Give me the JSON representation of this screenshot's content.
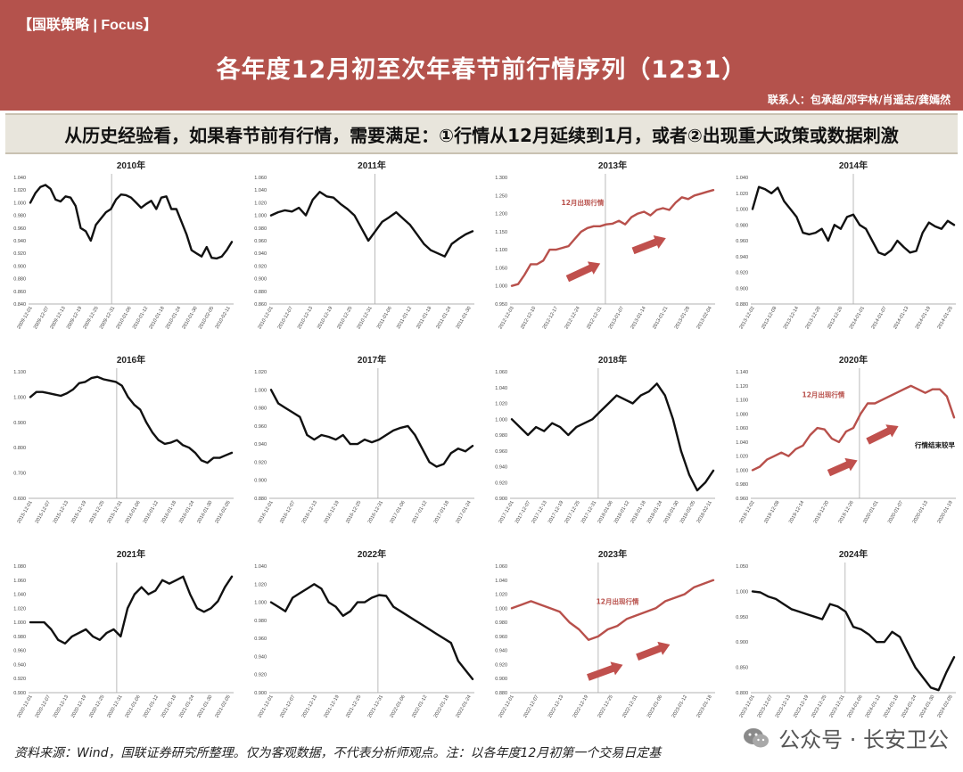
{
  "header": {
    "tag": "【国联策略 | Focus】",
    "title": "各年度12月初至次年春节前行情序列（1231）",
    "contacts": "联系人：包承超/邓宇林/肖遥志/龚嫣然"
  },
  "banner": {
    "text": "从历史经验看，如果春节前有行情，需要满足：①行情从12月延续到1月，或者②出现重大政策或数据刺激"
  },
  "footer": {
    "source": "资料来源：Wind，国联证券研究所整理。仅为客观数据，不代表分析师观点。注：以各年度12月初第一个交易日定基"
  },
  "watermark": {
    "text": "公众号 · 长安卫公",
    "icon": "wechat-icon"
  },
  "colors": {
    "black_line": "#111111",
    "red_line": "#b8504b",
    "arrow": "#c0504d",
    "header_bg": "#b4524c"
  },
  "chart_data": [
    {
      "type": "line",
      "title": "2010年",
      "color": "black",
      "ylim": [
        0.84,
        1.04
      ],
      "yticks": [
        "0.840",
        "0.860",
        "0.880",
        "0.900",
        "0.920",
        "0.940",
        "0.960",
        "0.980",
        "1.000",
        "1.020",
        "1.040"
      ],
      "xticks": [
        "2009-12-01",
        "2009-12-07",
        "2009-12-13",
        "2009-12-19",
        "2009-12-25",
        "2009-12-31",
        "2010-01-06",
        "2010-01-12",
        "2010-01-18",
        "2010-01-24",
        "2010-01-30",
        "2010-02-05",
        "2010-02-11"
      ],
      "divider": 0.405,
      "annotations": [],
      "arrows": [],
      "values": [
        1.0,
        1.015,
        1.025,
        1.028,
        1.022,
        1.005,
        1.002,
        1.01,
        1.008,
        0.995,
        0.96,
        0.955,
        0.94,
        0.965,
        0.975,
        0.985,
        0.99,
        1.005,
        1.013,
        1.012,
        1.008,
        1.0,
        0.992,
        0.998,
        1.003,
        0.99,
        1.008,
        1.01,
        0.99,
        0.99,
        0.97,
        0.95,
        0.925,
        0.92,
        0.915,
        0.93,
        0.913,
        0.912,
        0.915,
        0.925,
        0.938
      ]
    },
    {
      "type": "line",
      "title": "2011年",
      "color": "black",
      "ylim": [
        0.86,
        1.06
      ],
      "yticks": [
        "0.860",
        "0.880",
        "0.900",
        "0.920",
        "0.940",
        "0.960",
        "0.980",
        "1.000",
        "1.020",
        "1.040",
        "1.060"
      ],
      "xticks": [
        "2010-12-01",
        "2010-12-07",
        "2010-12-13",
        "2010-12-19",
        "2010-12-25",
        "2010-12-31",
        "2011-01-06",
        "2011-01-12",
        "2011-01-18",
        "2011-01-24",
        "2011-01-30"
      ],
      "divider": 0.515,
      "annotations": [],
      "arrows": [],
      "values": [
        1.0,
        1.005,
        1.008,
        1.006,
        1.012,
        1.0,
        1.025,
        1.037,
        1.03,
        1.028,
        1.018,
        1.01,
        1.0,
        0.98,
        0.96,
        0.975,
        0.99,
        0.997,
        1.005,
        0.995,
        0.985,
        0.97,
        0.955,
        0.945,
        0.94,
        0.935,
        0.955,
        0.963,
        0.97,
        0.975
      ]
    },
    {
      "type": "line",
      "title": "2013年",
      "color": "red",
      "ylim": [
        0.95,
        1.3
      ],
      "yticks": [
        "0.950",
        "1.000",
        "1.050",
        "1.100",
        "1.150",
        "1.200",
        "1.250",
        "1.300"
      ],
      "xticks": [
        "2012-12-03",
        "2012-12-10",
        "2012-12-17",
        "2012-12-24",
        "2012-12-31",
        "2013-01-07",
        "2013-01-14",
        "2013-01-21",
        "2013-01-28",
        "2013-02-04"
      ],
      "divider": 0.465,
      "annotations": [
        {
          "text": "12月出现行情",
          "x": 0.25,
          "y": 0.22
        }
      ],
      "arrows": [
        {
          "x1": 0.28,
          "y1": 0.8,
          "x2": 0.44,
          "y2": 0.68
        },
        {
          "x1": 0.6,
          "y1": 0.58,
          "x2": 0.76,
          "y2": 0.48
        }
      ],
      "values": [
        1.0,
        1.005,
        1.03,
        1.06,
        1.06,
        1.07,
        1.1,
        1.1,
        1.105,
        1.11,
        1.13,
        1.15,
        1.16,
        1.165,
        1.165,
        1.17,
        1.172,
        1.18,
        1.17,
        1.19,
        1.2,
        1.205,
        1.195,
        1.21,
        1.215,
        1.21,
        1.23,
        1.245,
        1.24,
        1.25,
        1.255,
        1.26,
        1.265
      ]
    },
    {
      "type": "line",
      "title": "2014年",
      "color": "black",
      "ylim": [
        0.88,
        1.04
      ],
      "yticks": [
        "0.880",
        "0.900",
        "0.920",
        "0.940",
        "0.960",
        "0.980",
        "1.000",
        "1.020",
        "1.040"
      ],
      "xticks": [
        "2013-12-02",
        "2013-12-08",
        "2013-12-14",
        "2013-12-20",
        "2013-12-26",
        "2014-01-01",
        "2014-01-07",
        "2014-01-13",
        "2014-01-19",
        "2014-01-25"
      ],
      "divider": 0.5,
      "annotations": [],
      "arrows": [],
      "values": [
        1.0,
        1.028,
        1.025,
        1.02,
        1.027,
        1.01,
        1.0,
        0.99,
        0.97,
        0.968,
        0.97,
        0.975,
        0.96,
        0.98,
        0.975,
        0.99,
        0.993,
        0.98,
        0.975,
        0.96,
        0.945,
        0.942,
        0.948,
        0.96,
        0.952,
        0.945,
        0.947,
        0.97,
        0.983,
        0.978,
        0.975,
        0.985,
        0.98
      ]
    },
    {
      "type": "line",
      "title": "2016年",
      "color": "black",
      "ylim": [
        0.6,
        1.1
      ],
      "yticks": [
        "0.600",
        "0.700",
        "0.800",
        "0.900",
        "1.000",
        "1.100"
      ],
      "xticks": [
        "2015-12-01",
        "2015-12-07",
        "2015-12-13",
        "2015-12-19",
        "2015-12-25",
        "2015-12-31",
        "2016-01-06",
        "2016-01-12",
        "2016-01-18",
        "2016-01-24",
        "2016-01-30",
        "2016-02-05"
      ],
      "divider": 0.43,
      "annotations": [],
      "arrows": [],
      "values": [
        1.0,
        1.02,
        1.02,
        1.015,
        1.01,
        1.005,
        1.015,
        1.03,
        1.055,
        1.06,
        1.075,
        1.08,
        1.07,
        1.065,
        1.06,
        1.045,
        1.0,
        0.97,
        0.95,
        0.9,
        0.86,
        0.83,
        0.815,
        0.82,
        0.83,
        0.81,
        0.8,
        0.78,
        0.75,
        0.74,
        0.76,
        0.76,
        0.77,
        0.78
      ]
    },
    {
      "type": "line",
      "title": "2017年",
      "color": "black",
      "ylim": [
        0.88,
        1.02
      ],
      "yticks": [
        "0.880",
        "0.900",
        "0.920",
        "0.940",
        "0.960",
        "0.980",
        "1.000",
        "1.020"
      ],
      "xticks": [
        "2016-12-01",
        "2016-12-07",
        "2016-12-13",
        "2016-12-19",
        "2016-12-25",
        "2016-12-31",
        "2017-01-06",
        "2017-01-12",
        "2017-01-18",
        "2017-01-24"
      ],
      "divider": 0.53,
      "annotations": [],
      "arrows": [],
      "values": [
        1.0,
        0.985,
        0.98,
        0.975,
        0.97,
        0.95,
        0.945,
        0.95,
        0.948,
        0.945,
        0.95,
        0.94,
        0.94,
        0.945,
        0.942,
        0.945,
        0.95,
        0.955,
        0.958,
        0.96,
        0.95,
        0.935,
        0.92,
        0.915,
        0.918,
        0.93,
        0.935,
        0.932,
        0.938
      ]
    },
    {
      "type": "line",
      "title": "2018年",
      "color": "black",
      "ylim": [
        0.9,
        1.06
      ],
      "yticks": [
        "0.900",
        "0.920",
        "0.940",
        "0.960",
        "0.980",
        "1.000",
        "1.020",
        "1.040",
        "1.060"
      ],
      "xticks": [
        "2017-12-01",
        "2017-12-07",
        "2017-12-13",
        "2017-12-19",
        "2017-12-25",
        "2017-12-31",
        "2018-01-06",
        "2018-01-12",
        "2018-01-18",
        "2018-01-24",
        "2018-01-30",
        "2018-02-05",
        "2018-02-11"
      ],
      "divider": 0.43,
      "annotations": [],
      "arrows": [],
      "values": [
        1.0,
        0.99,
        0.98,
        0.99,
        0.985,
        0.995,
        0.99,
        0.98,
        0.99,
        0.995,
        1.0,
        1.01,
        1.02,
        1.03,
        1.025,
        1.02,
        1.03,
        1.035,
        1.045,
        1.03,
        1.0,
        0.96,
        0.93,
        0.91,
        0.92,
        0.935
      ]
    },
    {
      "type": "line",
      "title": "2020年",
      "color": "red",
      "ylim": [
        0.96,
        1.14
      ],
      "yticks": [
        "0.960",
        "0.980",
        "1.000",
        "1.020",
        "1.040",
        "1.060",
        "1.080",
        "1.100",
        "1.120",
        "1.140"
      ],
      "xticks": [
        "2019-12-02",
        "2019-12-08",
        "2019-12-14",
        "2019-12-20",
        "2019-12-26",
        "2020-01-01",
        "2020-01-07",
        "2020-01-13",
        "2020-01-19"
      ],
      "divider": 0.53,
      "annotations": [
        {
          "text": "12月出现行情",
          "x": 0.25,
          "y": 0.2
        },
        {
          "text": "行情结束较早",
          "x": 0.8,
          "y": 0.6
        }
      ],
      "arrows": [
        {
          "x1": 0.38,
          "y1": 0.8,
          "x2": 0.52,
          "y2": 0.7
        },
        {
          "x1": 0.57,
          "y1": 0.55,
          "x2": 0.72,
          "y2": 0.43
        }
      ],
      "values": [
        1.0,
        1.005,
        1.015,
        1.02,
        1.025,
        1.02,
        1.03,
        1.035,
        1.05,
        1.06,
        1.058,
        1.045,
        1.04,
        1.055,
        1.06,
        1.08,
        1.095,
        1.095,
        1.1,
        1.105,
        1.11,
        1.115,
        1.12,
        1.115,
        1.11,
        1.115,
        1.115,
        1.105,
        1.075
      ]
    },
    {
      "type": "line",
      "title": "2021年",
      "color": "black",
      "ylim": [
        0.9,
        1.08
      ],
      "yticks": [
        "0.900",
        "0.920",
        "0.940",
        "0.960",
        "0.980",
        "1.000",
        "1.020",
        "1.040",
        "1.060",
        "1.080"
      ],
      "xticks": [
        "2020-12-01",
        "2020-12-07",
        "2020-12-13",
        "2020-12-19",
        "2020-12-25",
        "2020-12-31",
        "2021-01-06",
        "2021-01-12",
        "2021-01-18",
        "2021-01-24",
        "2021-01-30",
        "2021-02-05"
      ],
      "divider": 0.43,
      "annotations": [],
      "arrows": [],
      "values": [
        1.0,
        1.0,
        1.0,
        0.99,
        0.975,
        0.97,
        0.98,
        0.985,
        0.99,
        0.98,
        0.975,
        0.985,
        0.99,
        0.98,
        1.02,
        1.04,
        1.05,
        1.04,
        1.045,
        1.06,
        1.055,
        1.06,
        1.065,
        1.04,
        1.02,
        1.015,
        1.02,
        1.03,
        1.05,
        1.065
      ]
    },
    {
      "type": "line",
      "title": "2022年",
      "color": "black",
      "ylim": [
        0.9,
        1.04
      ],
      "yticks": [
        "0.900",
        "0.920",
        "0.940",
        "0.960",
        "0.980",
        "1.000",
        "1.020",
        "1.040"
      ],
      "xticks": [
        "2021-12-01",
        "2021-12-07",
        "2021-12-13",
        "2021-12-19",
        "2021-12-25",
        "2021-12-31",
        "2022-01-06",
        "2022-01-12",
        "2022-01-18",
        "2022-01-24"
      ],
      "divider": 0.53,
      "annotations": [],
      "arrows": [],
      "values": [
        1.0,
        0.995,
        0.99,
        1.005,
        1.01,
        1.015,
        1.02,
        1.015,
        1.0,
        0.995,
        0.985,
        0.99,
        1.0,
        1.0,
        1.005,
        1.008,
        1.007,
        0.995,
        0.99,
        0.985,
        0.98,
        0.975,
        0.97,
        0.965,
        0.96,
        0.955,
        0.935,
        0.925,
        0.915
      ]
    },
    {
      "type": "line",
      "title": "2023年",
      "color": "red",
      "ylim": [
        0.88,
        1.06
      ],
      "yticks": [
        "0.880",
        "0.900",
        "0.920",
        "0.940",
        "0.960",
        "0.980",
        "1.000",
        "1.020",
        "1.040",
        "1.060"
      ],
      "xticks": [
        "2022-12-01",
        "2022-12-07",
        "2022-12-13",
        "2022-12-19",
        "2022-12-25",
        "2022-12-31",
        "2023-01-06",
        "2023-01-12",
        "2023-01-18"
      ],
      "divider": 0.43,
      "annotations": [
        {
          "text": "12月出现行情",
          "x": 0.42,
          "y": 0.3
        }
      ],
      "arrows": [
        {
          "x1": 0.38,
          "y1": 0.88,
          "x2": 0.55,
          "y2": 0.78
        },
        {
          "x1": 0.62,
          "y1": 0.72,
          "x2": 0.78,
          "y2": 0.62
        }
      ],
      "values": [
        1.0,
        1.005,
        1.01,
        1.005,
        1.0,
        0.995,
        0.98,
        0.97,
        0.955,
        0.96,
        0.97,
        0.975,
        0.985,
        0.99,
        0.995,
        1.0,
        1.01,
        1.015,
        1.02,
        1.03,
        1.035,
        1.04
      ]
    },
    {
      "type": "line",
      "title": "2024年",
      "color": "black",
      "ylim": [
        0.8,
        1.05
      ],
      "yticks": [
        "0.800",
        "0.850",
        "0.900",
        "0.950",
        "1.000",
        "1.050"
      ],
      "xticks": [
        "2023-12-01",
        "2023-12-07",
        "2023-12-13",
        "2023-12-19",
        "2023-12-25",
        "2023-12-31",
        "2024-01-06",
        "2024-01-12",
        "2024-01-18",
        "2024-01-24",
        "2024-01-30",
        "2024-02-05"
      ],
      "divider": 0.46,
      "annotations": [],
      "arrows": [],
      "values": [
        1.0,
        0.998,
        0.99,
        0.985,
        0.975,
        0.965,
        0.96,
        0.955,
        0.95,
        0.945,
        0.975,
        0.97,
        0.96,
        0.93,
        0.925,
        0.915,
        0.9,
        0.9,
        0.92,
        0.91,
        0.88,
        0.85,
        0.83,
        0.81,
        0.805,
        0.84,
        0.87
      ]
    }
  ]
}
